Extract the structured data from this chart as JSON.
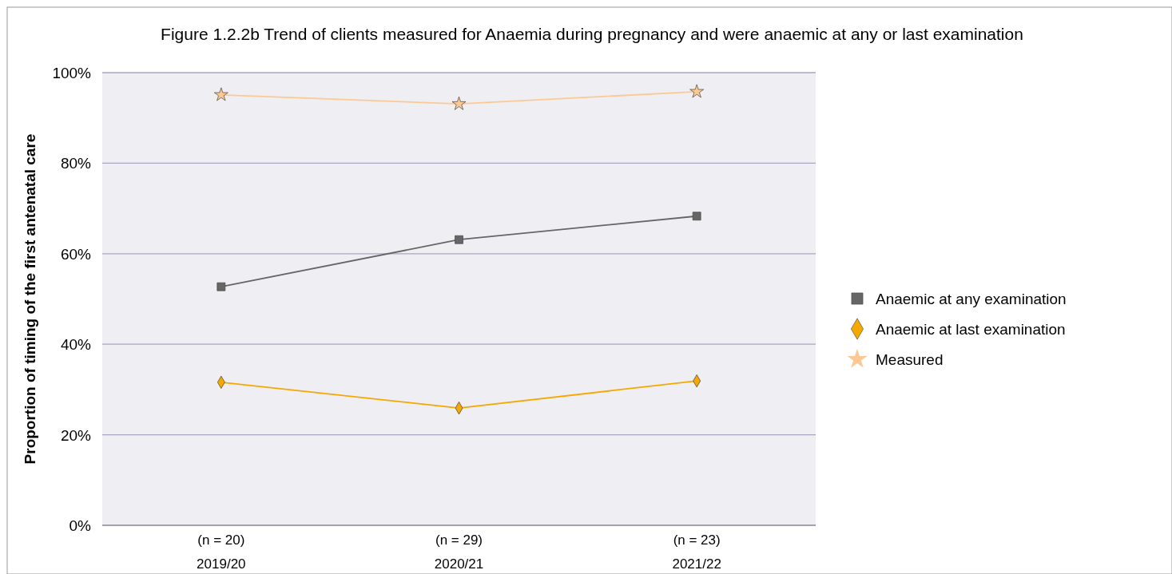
{
  "chart_data": {
    "type": "line",
    "title": "Figure 1.2.2b Trend of clients measured for Anaemia during pregnancy and were anaemic at any or last examination",
    "ylabel": "Proportion of timing of the first antenatal care",
    "categories": [
      "(n = 20)\n2019/20",
      "(n = 29)\n2020/21",
      "(n = 23)\n2021/22"
    ],
    "series": [
      {
        "name": "Anaemic at any examination",
        "color": "#666666",
        "marker": "square",
        "values": [
          52.7,
          63.1,
          68.3
        ]
      },
      {
        "name": "Anaemic at last examination",
        "color": "#f5a800",
        "marker": "diamond",
        "values": [
          31.6,
          25.9,
          31.9
        ]
      },
      {
        "name": "Measured",
        "color": "#fcc994",
        "marker": "star",
        "values": [
          95.1,
          93.1,
          95.8
        ]
      }
    ],
    "ylim": [
      0,
      100
    ],
    "yticks": [
      {
        "value": 0,
        "label": "0%"
      },
      {
        "value": 20,
        "label": "20%"
      },
      {
        "value": 40,
        "label": "40%"
      },
      {
        "value": 60,
        "label": "60%"
      },
      {
        "value": 80,
        "label": "80%"
      },
      {
        "value": 100,
        "label": "100%"
      }
    ],
    "grid": "y",
    "legend": "right"
  }
}
